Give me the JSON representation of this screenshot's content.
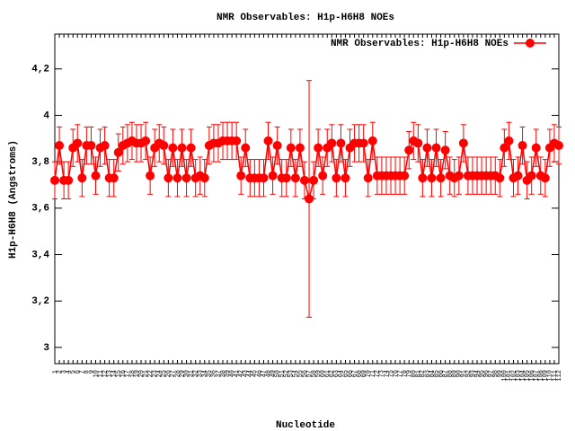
{
  "chart_data": {
    "type": "errorline",
    "title": "NMR Observables: H1p-H6H8 NOEs",
    "x_label": "Nucleotide",
    "y_label": "H1p-H6H8 (Angstroms)",
    "categories": [
      "1",
      "2",
      "3",
      "4",
      "5",
      "6",
      "7",
      "8",
      "9",
      "10",
      "11",
      "12",
      "13",
      "14",
      "15",
      "16",
      "17",
      "18",
      "19",
      "20",
      "21",
      "22",
      "23",
      "24",
      "25",
      "26",
      "27",
      "28",
      "29",
      "30",
      "31",
      "32",
      "33",
      "34",
      "35",
      "36",
      "37",
      "38",
      "39",
      "40",
      "41",
      "42",
      "43",
      "44",
      "45",
      "46",
      "47",
      "48",
      "49",
      "50",
      "51",
      "52",
      "53",
      "54",
      "55",
      "56",
      "57",
      "58",
      "59",
      "60",
      "61",
      "62",
      "63",
      "64",
      "65",
      "66",
      "67",
      "68",
      "69",
      "70",
      "71",
      "72",
      "73",
      "74",
      "75",
      "76",
      "77",
      "78",
      "79",
      "80",
      "81",
      "82",
      "83",
      "84",
      "85",
      "86",
      "87",
      "88",
      "89",
      "90",
      "91",
      "92",
      "93",
      "94",
      "95",
      "96",
      "97",
      "98",
      "99",
      "100",
      "101",
      "102",
      "103",
      "104",
      "105",
      "106",
      "107",
      "108",
      "109",
      "110",
      "111",
      "112"
    ],
    "series": [
      {
        "name": "NMR Observables: H1p-H6H8 NOEs",
        "color": "#ff0000",
        "values": [
          3.72,
          3.87,
          3.72,
          3.72,
          3.86,
          3.88,
          3.73,
          3.87,
          3.87,
          3.74,
          3.86,
          3.87,
          3.73,
          3.73,
          3.84,
          3.87,
          3.88,
          3.89,
          3.88,
          3.88,
          3.89,
          3.74,
          3.86,
          3.88,
          3.87,
          3.73,
          3.86,
          3.73,
          3.86,
          3.73,
          3.86,
          3.73,
          3.74,
          3.73,
          3.87,
          3.88,
          3.88,
          3.89,
          3.89,
          3.89,
          3.89,
          3.74,
          3.86,
          3.73,
          3.73,
          3.73,
          3.73,
          3.89,
          3.74,
          3.87,
          3.73,
          3.73,
          3.86,
          3.73,
          3.86,
          3.72,
          3.64,
          3.72,
          3.86,
          3.74,
          3.86,
          3.88,
          3.73,
          3.88,
          3.73,
          3.86,
          3.88,
          3.88,
          3.88,
          3.73,
          3.89,
          3.74,
          3.74,
          3.74,
          3.74,
          3.74,
          3.74,
          3.74,
          3.85,
          3.89,
          3.88,
          3.73,
          3.86,
          3.73,
          3.86,
          3.73,
          3.85,
          3.74,
          3.73,
          3.74,
          3.88,
          3.74,
          3.74,
          3.74,
          3.74,
          3.74,
          3.74,
          3.74,
          3.73,
          3.86,
          3.89,
          3.73,
          3.74,
          3.87,
          3.72,
          3.74,
          3.86,
          3.74,
          3.73,
          3.86,
          3.88,
          3.87
        ],
        "errors": [
          0.08,
          0.08,
          0.08,
          0.08,
          0.08,
          0.08,
          0.08,
          0.08,
          0.08,
          0.08,
          0.08,
          0.08,
          0.08,
          0.08,
          0.08,
          0.08,
          0.08,
          0.08,
          0.08,
          0.08,
          0.08,
          0.08,
          0.08,
          0.08,
          0.08,
          0.08,
          0.08,
          0.08,
          0.08,
          0.08,
          0.08,
          0.08,
          0.08,
          0.08,
          0.08,
          0.08,
          0.08,
          0.08,
          0.08,
          0.08,
          0.08,
          0.08,
          0.08,
          0.08,
          0.08,
          0.08,
          0.08,
          0.08,
          0.08,
          0.08,
          0.08,
          0.08,
          0.08,
          0.08,
          0.08,
          0.08,
          0.51,
          0.08,
          0.08,
          0.08,
          0.08,
          0.08,
          0.08,
          0.08,
          0.08,
          0.08,
          0.08,
          0.08,
          0.08,
          0.08,
          0.08,
          0.08,
          0.08,
          0.08,
          0.08,
          0.08,
          0.08,
          0.08,
          0.08,
          0.08,
          0.08,
          0.08,
          0.08,
          0.08,
          0.08,
          0.08,
          0.08,
          0.08,
          0.08,
          0.08,
          0.08,
          0.08,
          0.08,
          0.08,
          0.08,
          0.08,
          0.08,
          0.08,
          0.08,
          0.08,
          0.08,
          0.08,
          0.08,
          0.08,
          0.08,
          0.08,
          0.08,
          0.08,
          0.08,
          0.08,
          0.08,
          0.08
        ]
      }
    ],
    "ylim": [
      2.93,
      4.35
    ],
    "yticks": [
      3,
      {
        "value": 3.2,
        "label": "3,2"
      },
      {
        "value": 3.4,
        "label": "3,4"
      },
      {
        "value": 3.6,
        "label": "3,6"
      },
      {
        "value": 3.8,
        "label": "3,8"
      },
      4,
      {
        "value": 4.2,
        "label": "4,2"
      }
    ],
    "legend": "top-right"
  }
}
